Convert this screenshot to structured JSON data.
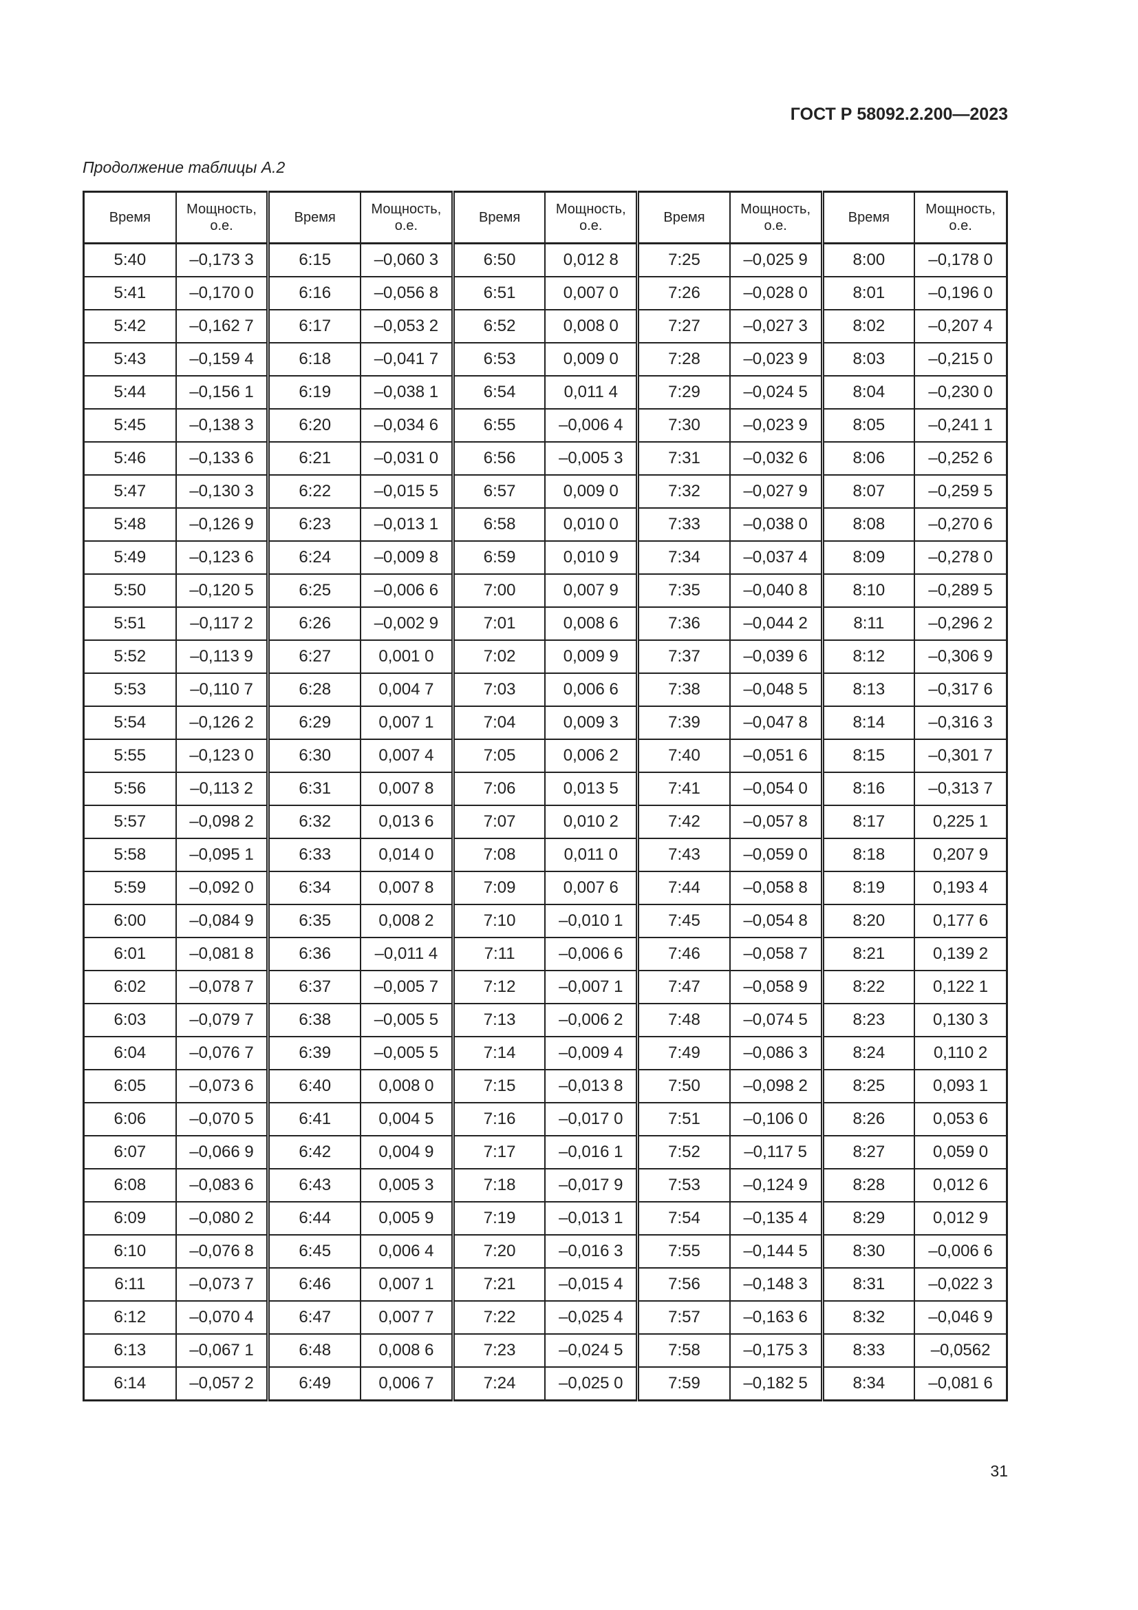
{
  "header": {
    "doc_code": "ГОСТ Р 58092.2.200—2023"
  },
  "caption": "Продолжение таблицы А.2",
  "table": {
    "columns": [
      "Время",
      "Мощность, о.е.",
      "Время",
      "Мощность, о.е.",
      "Время",
      "Мощность, о.е.",
      "Время",
      "Мощность, о.е.",
      "Время",
      "Мощность, о.е."
    ],
    "rows": [
      [
        "5:40",
        "–0,173 3",
        "6:15",
        "–0,060 3",
        "6:50",
        "0,012 8",
        "7:25",
        "–0,025 9",
        "8:00",
        "–0,178 0"
      ],
      [
        "5:41",
        "–0,170 0",
        "6:16",
        "–0,056 8",
        "6:51",
        "0,007 0",
        "7:26",
        "–0,028 0",
        "8:01",
        "–0,196 0"
      ],
      [
        "5:42",
        "–0,162 7",
        "6:17",
        "–0,053 2",
        "6:52",
        "0,008 0",
        "7:27",
        "–0,027 3",
        "8:02",
        "–0,207 4"
      ],
      [
        "5:43",
        "–0,159 4",
        "6:18",
        "–0,041 7",
        "6:53",
        "0,009 0",
        "7:28",
        "–0,023 9",
        "8:03",
        "–0,215 0"
      ],
      [
        "5:44",
        "–0,156 1",
        "6:19",
        "–0,038 1",
        "6:54",
        "0,011 4",
        "7:29",
        "–0,024 5",
        "8:04",
        "–0,230 0"
      ],
      [
        "5:45",
        "–0,138 3",
        "6:20",
        "–0,034 6",
        "6:55",
        "–0,006 4",
        "7:30",
        "–0,023 9",
        "8:05",
        "–0,241 1"
      ],
      [
        "5:46",
        "–0,133 6",
        "6:21",
        "–0,031 0",
        "6:56",
        "–0,005 3",
        "7:31",
        "–0,032 6",
        "8:06",
        "–0,252 6"
      ],
      [
        "5:47",
        "–0,130 3",
        "6:22",
        "–0,015 5",
        "6:57",
        "0,009 0",
        "7:32",
        "–0,027 9",
        "8:07",
        "–0,259 5"
      ],
      [
        "5:48",
        "–0,126 9",
        "6:23",
        "–0,013 1",
        "6:58",
        "0,010 0",
        "7:33",
        "–0,038 0",
        "8:08",
        "–0,270 6"
      ],
      [
        "5:49",
        "–0,123 6",
        "6:24",
        "–0,009 8",
        "6:59",
        "0,010 9",
        "7:34",
        "–0,037 4",
        "8:09",
        "–0,278 0"
      ],
      [
        "5:50",
        "–0,120 5",
        "6:25",
        "–0,006 6",
        "7:00",
        "0,007 9",
        "7:35",
        "–0,040 8",
        "8:10",
        "–0,289 5"
      ],
      [
        "5:51",
        "–0,117 2",
        "6:26",
        "–0,002 9",
        "7:01",
        "0,008 6",
        "7:36",
        "–0,044 2",
        "8:11",
        "–0,296 2"
      ],
      [
        "5:52",
        "–0,113 9",
        "6:27",
        "0,001 0",
        "7:02",
        "0,009 9",
        "7:37",
        "–0,039 6",
        "8:12",
        "–0,306 9"
      ],
      [
        "5:53",
        "–0,110 7",
        "6:28",
        "0,004 7",
        "7:03",
        "0,006 6",
        "7:38",
        "–0,048 5",
        "8:13",
        "–0,317 6"
      ],
      [
        "5:54",
        "–0,126 2",
        "6:29",
        "0,007 1",
        "7:04",
        "0,009 3",
        "7:39",
        "–0,047 8",
        "8:14",
        "–0,316 3"
      ],
      [
        "5:55",
        "–0,123 0",
        "6:30",
        "0,007 4",
        "7:05",
        "0,006 2",
        "7:40",
        "–0,051 6",
        "8:15",
        "–0,301 7"
      ],
      [
        "5:56",
        "–0,113 2",
        "6:31",
        "0,007 8",
        "7:06",
        "0,013 5",
        "7:41",
        "–0,054 0",
        "8:16",
        "–0,313 7"
      ],
      [
        "5:57",
        "–0,098 2",
        "6:32",
        "0,013 6",
        "7:07",
        "0,010 2",
        "7:42",
        "–0,057 8",
        "8:17",
        "0,225 1"
      ],
      [
        "5:58",
        "–0,095 1",
        "6:33",
        "0,014 0",
        "7:08",
        "0,011 0",
        "7:43",
        "–0,059 0",
        "8:18",
        "0,207 9"
      ],
      [
        "5:59",
        "–0,092 0",
        "6:34",
        "0,007 8",
        "7:09",
        "0,007 6",
        "7:44",
        "–0,058 8",
        "8:19",
        "0,193 4"
      ],
      [
        "6:00",
        "–0,084 9",
        "6:35",
        "0,008 2",
        "7:10",
        "–0,010 1",
        "7:45",
        "–0,054 8",
        "8:20",
        "0,177 6"
      ],
      [
        "6:01",
        "–0,081 8",
        "6:36",
        "–0,011 4",
        "7:11",
        "–0,006 6",
        "7:46",
        "–0,058 7",
        "8:21",
        "0,139 2"
      ],
      [
        "6:02",
        "–0,078 7",
        "6:37",
        "–0,005 7",
        "7:12",
        "–0,007 1",
        "7:47",
        "–0,058 9",
        "8:22",
        "0,122 1"
      ],
      [
        "6:03",
        "–0,079 7",
        "6:38",
        "–0,005 5",
        "7:13",
        "–0,006 2",
        "7:48",
        "–0,074 5",
        "8:23",
        "0,130 3"
      ],
      [
        "6:04",
        "–0,076 7",
        "6:39",
        "–0,005 5",
        "7:14",
        "–0,009 4",
        "7:49",
        "–0,086 3",
        "8:24",
        "0,110 2"
      ],
      [
        "6:05",
        "–0,073 6",
        "6:40",
        "0,008 0",
        "7:15",
        "–0,013 8",
        "7:50",
        "–0,098 2",
        "8:25",
        "0,093 1"
      ],
      [
        "6:06",
        "–0,070 5",
        "6:41",
        "0,004 5",
        "7:16",
        "–0,017 0",
        "7:51",
        "–0,106 0",
        "8:26",
        "0,053 6"
      ],
      [
        "6:07",
        "–0,066 9",
        "6:42",
        "0,004 9",
        "7:17",
        "–0,016 1",
        "7:52",
        "–0,117 5",
        "8:27",
        "0,059 0"
      ],
      [
        "6:08",
        "–0,083 6",
        "6:43",
        "0,005 3",
        "7:18",
        "–0,017 9",
        "7:53",
        "–0,124 9",
        "8:28",
        "0,012 6"
      ],
      [
        "6:09",
        "–0,080 2",
        "6:44",
        "0,005 9",
        "7:19",
        "–0,013 1",
        "7:54",
        "–0,135 4",
        "8:29",
        "0,012 9"
      ],
      [
        "6:10",
        "–0,076 8",
        "6:45",
        "0,006 4",
        "7:20",
        "–0,016 3",
        "7:55",
        "–0,144 5",
        "8:30",
        "–0,006 6"
      ],
      [
        "6:11",
        "–0,073 7",
        "6:46",
        "0,007 1",
        "7:21",
        "–0,015 4",
        "7:56",
        "–0,148 3",
        "8:31",
        "–0,022 3"
      ],
      [
        "6:12",
        "–0,070 4",
        "6:47",
        "0,007 7",
        "7:22",
        "–0,025 4",
        "7:57",
        "–0,163 6",
        "8:32",
        "–0,046 9"
      ],
      [
        "6:13",
        "–0,067 1",
        "6:48",
        "0,008 6",
        "7:23",
        "–0,024 5",
        "7:58",
        "–0,175 3",
        "8:33",
        "–0,0562"
      ],
      [
        "6:14",
        "–0,057 2",
        "6:49",
        "0,006 7",
        "7:24",
        "–0,025 0",
        "7:59",
        "–0,182 5",
        "8:34",
        "–0,081 6"
      ]
    ]
  },
  "footer": {
    "page_number": "31"
  }
}
